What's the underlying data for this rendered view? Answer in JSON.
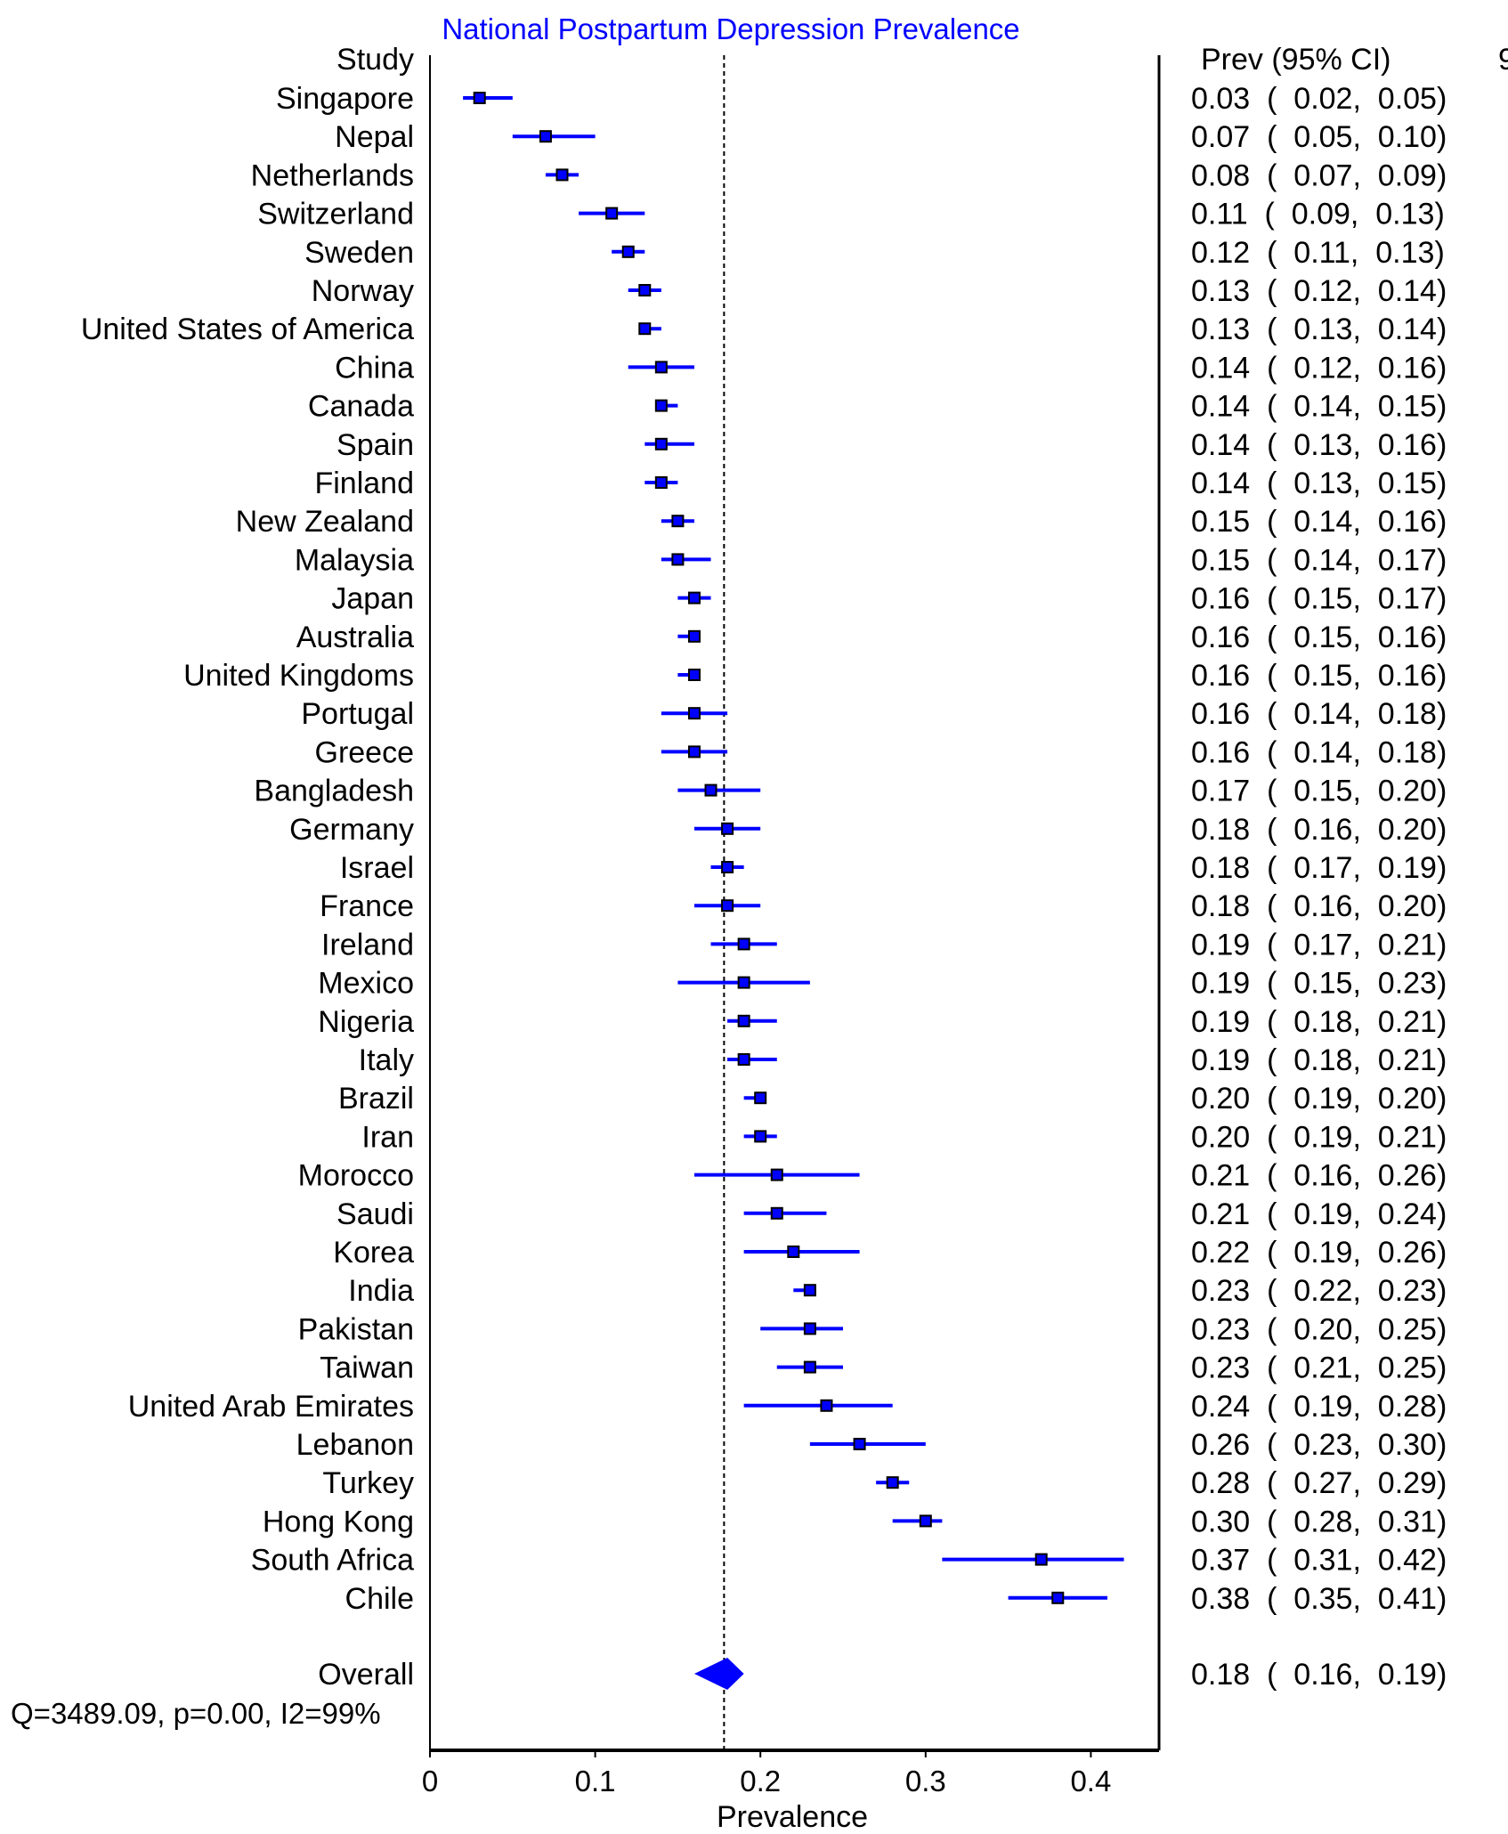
{
  "chart_data": {
    "type": "forest",
    "title": "National Postpartum Depression Prevalence",
    "study_header": "Study",
    "estimate_header": "Prev (95% CI)",
    "clipped_right_header": "9",
    "xlabel": "Prevalence",
    "xlim": [
      0,
      0.44
    ],
    "xticks": [
      0,
      0.1,
      0.2,
      0.3,
      0.4
    ],
    "xtick_labels": [
      "0",
      "0.1",
      "0.2",
      "0.3",
      "0.4"
    ],
    "reference_line": 0.178,
    "colors": {
      "title": "#0000ff",
      "ci_line": "#0000ff",
      "marker": "#0000ff",
      "marker_edge": "#000000",
      "diamond": "#0000ff"
    },
    "studies": [
      {
        "name": "Singapore",
        "est": 0.03,
        "lo": 0.02,
        "hi": 0.05,
        "label": "0.03  (  0.02,  0.05)"
      },
      {
        "name": "Nepal",
        "est": 0.07,
        "lo": 0.05,
        "hi": 0.1,
        "label": "0.07  (  0.05,  0.10)"
      },
      {
        "name": "Netherlands",
        "est": 0.08,
        "lo": 0.07,
        "hi": 0.09,
        "label": "0.08  (  0.07,  0.09)"
      },
      {
        "name": "Switzerland",
        "est": 0.11,
        "lo": 0.09,
        "hi": 0.13,
        "label": "0.11  (  0.09,  0.13)"
      },
      {
        "name": "Sweden",
        "est": 0.12,
        "lo": 0.11,
        "hi": 0.13,
        "label": "0.12  (  0.11,  0.13)"
      },
      {
        "name": "Norway",
        "est": 0.13,
        "lo": 0.12,
        "hi": 0.14,
        "label": "0.13  (  0.12,  0.14)"
      },
      {
        "name": "United States of America",
        "est": 0.13,
        "lo": 0.13,
        "hi": 0.14,
        "label": "0.13  (  0.13,  0.14)"
      },
      {
        "name": "China",
        "est": 0.14,
        "lo": 0.12,
        "hi": 0.16,
        "label": "0.14  (  0.12,  0.16)"
      },
      {
        "name": "Canada",
        "est": 0.14,
        "lo": 0.14,
        "hi": 0.15,
        "label": "0.14  (  0.14,  0.15)"
      },
      {
        "name": "Spain",
        "est": 0.14,
        "lo": 0.13,
        "hi": 0.16,
        "label": "0.14  (  0.13,  0.16)"
      },
      {
        "name": "Finland",
        "est": 0.14,
        "lo": 0.13,
        "hi": 0.15,
        "label": "0.14  (  0.13,  0.15)"
      },
      {
        "name": "New Zealand",
        "est": 0.15,
        "lo": 0.14,
        "hi": 0.16,
        "label": "0.15  (  0.14,  0.16)"
      },
      {
        "name": "Malaysia",
        "est": 0.15,
        "lo": 0.14,
        "hi": 0.17,
        "label": "0.15  (  0.14,  0.17)"
      },
      {
        "name": "Japan",
        "est": 0.16,
        "lo": 0.15,
        "hi": 0.17,
        "label": "0.16  (  0.15,  0.17)"
      },
      {
        "name": "Australia",
        "est": 0.16,
        "lo": 0.15,
        "hi": 0.16,
        "label": "0.16  (  0.15,  0.16)"
      },
      {
        "name": "United Kingdoms",
        "est": 0.16,
        "lo": 0.15,
        "hi": 0.16,
        "label": "0.16  (  0.15,  0.16)"
      },
      {
        "name": "Portugal",
        "est": 0.16,
        "lo": 0.14,
        "hi": 0.18,
        "label": "0.16  (  0.14,  0.18)"
      },
      {
        "name": "Greece",
        "est": 0.16,
        "lo": 0.14,
        "hi": 0.18,
        "label": "0.16  (  0.14,  0.18)"
      },
      {
        "name": "Bangladesh",
        "est": 0.17,
        "lo": 0.15,
        "hi": 0.2,
        "label": "0.17  (  0.15,  0.20)"
      },
      {
        "name": "Germany",
        "est": 0.18,
        "lo": 0.16,
        "hi": 0.2,
        "label": "0.18  (  0.16,  0.20)"
      },
      {
        "name": "Israel",
        "est": 0.18,
        "lo": 0.17,
        "hi": 0.19,
        "label": "0.18  (  0.17,  0.19)"
      },
      {
        "name": "France",
        "est": 0.18,
        "lo": 0.16,
        "hi": 0.2,
        "label": "0.18  (  0.16,  0.20)"
      },
      {
        "name": "Ireland",
        "est": 0.19,
        "lo": 0.17,
        "hi": 0.21,
        "label": "0.19  (  0.17,  0.21)"
      },
      {
        "name": "Mexico",
        "est": 0.19,
        "lo": 0.15,
        "hi": 0.23,
        "label": "0.19  (  0.15,  0.23)"
      },
      {
        "name": "Nigeria",
        "est": 0.19,
        "lo": 0.18,
        "hi": 0.21,
        "label": "0.19  (  0.18,  0.21)"
      },
      {
        "name": "Italy",
        "est": 0.19,
        "lo": 0.18,
        "hi": 0.21,
        "label": "0.19  (  0.18,  0.21)"
      },
      {
        "name": "Brazil",
        "est": 0.2,
        "lo": 0.19,
        "hi": 0.2,
        "label": "0.20  (  0.19,  0.20)"
      },
      {
        "name": "Iran",
        "est": 0.2,
        "lo": 0.19,
        "hi": 0.21,
        "label": "0.20  (  0.19,  0.21)"
      },
      {
        "name": "Morocco",
        "est": 0.21,
        "lo": 0.16,
        "hi": 0.26,
        "label": "0.21  (  0.16,  0.26)"
      },
      {
        "name": "Saudi",
        "est": 0.21,
        "lo": 0.19,
        "hi": 0.24,
        "label": "0.21  (  0.19,  0.24)"
      },
      {
        "name": "Korea",
        "est": 0.22,
        "lo": 0.19,
        "hi": 0.26,
        "label": "0.22  (  0.19,  0.26)"
      },
      {
        "name": "India",
        "est": 0.23,
        "lo": 0.22,
        "hi": 0.23,
        "label": "0.23  (  0.22,  0.23)"
      },
      {
        "name": "Pakistan",
        "est": 0.23,
        "lo": 0.2,
        "hi": 0.25,
        "label": "0.23  (  0.20,  0.25)"
      },
      {
        "name": "Taiwan",
        "est": 0.23,
        "lo": 0.21,
        "hi": 0.25,
        "label": "0.23  (  0.21,  0.25)"
      },
      {
        "name": "United Arab Emirates",
        "est": 0.24,
        "lo": 0.19,
        "hi": 0.28,
        "label": "0.24  (  0.19,  0.28)"
      },
      {
        "name": "Lebanon",
        "est": 0.26,
        "lo": 0.23,
        "hi": 0.3,
        "label": "0.26  (  0.23,  0.30)"
      },
      {
        "name": "Turkey",
        "est": 0.28,
        "lo": 0.27,
        "hi": 0.29,
        "label": "0.28  (  0.27,  0.29)"
      },
      {
        "name": "Hong Kong",
        "est": 0.3,
        "lo": 0.28,
        "hi": 0.31,
        "label": "0.30  (  0.28,  0.31)"
      },
      {
        "name": "South Africa",
        "est": 0.37,
        "lo": 0.31,
        "hi": 0.42,
        "label": "0.37  (  0.31,  0.42)"
      },
      {
        "name": "Chile",
        "est": 0.38,
        "lo": 0.35,
        "hi": 0.41,
        "label": "0.38  (  0.35,  0.41)"
      }
    ],
    "overall": {
      "name": "Overall",
      "est": 0.18,
      "lo": 0.16,
      "hi": 0.19,
      "label": "0.18  (  0.16,  0.19)"
    },
    "heterogeneity": "Q=3489.09, p=0.00, I2=99%"
  }
}
